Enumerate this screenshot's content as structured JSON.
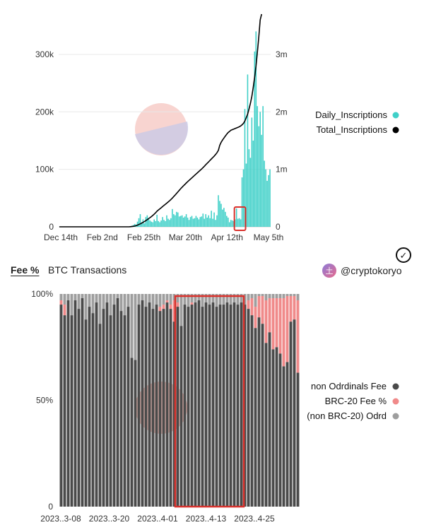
{
  "tabs": [
    {
      "label": "Fee %",
      "active": true
    },
    {
      "label": "BTC Transactions",
      "active": false
    }
  ],
  "author": "@cryptokoryo",
  "author_initial": "土",
  "check_icon": "✓",
  "chart_data": [
    {
      "type": "bar+line",
      "x_ticks": [
        "Dec 14th",
        "Feb 2nd",
        "Feb 25th",
        "Mar 20th",
        "Apr 12th",
        "May 5th"
      ],
      "y_left_ticks": [
        "0",
        "100k",
        "200k",
        "300k"
      ],
      "y_left_lim": [
        0,
        370000
      ],
      "y_right_ticks": [
        "0",
        "1m",
        "2m",
        "3m"
      ],
      "y_right_lim": [
        0,
        3700000
      ],
      "legend": [
        "Daily_Inscriptions",
        "Total_Inscriptions"
      ],
      "legend_position": "right",
      "colors": {
        "Daily_Inscriptions": "#40d0c8",
        "Total_Inscriptions": "#000000"
      },
      "series": [
        {
          "name": "Daily_Inscriptions",
          "values": [
            0,
            0,
            0,
            0,
            0,
            0,
            0,
            0,
            0,
            0,
            0,
            0,
            0,
            0,
            0,
            0,
            0,
            0,
            0,
            0,
            0,
            0,
            0,
            0,
            0,
            0,
            0,
            0,
            0,
            0,
            0,
            0,
            0,
            0,
            0,
            0,
            0,
            0,
            0,
            0,
            0,
            0,
            0,
            0,
            0,
            0,
            0,
            0,
            0,
            0,
            0,
            1000,
            2000,
            3000,
            5000,
            4000,
            9000,
            15000,
            22000,
            8000,
            13000,
            6000,
            17000,
            20000,
            14000,
            11000,
            9000,
            8000,
            13000,
            10000,
            21000,
            10000,
            8000,
            11000,
            17000,
            12000,
            10000,
            20000,
            14000,
            12000,
            15000,
            31000,
            22000,
            20000,
            26000,
            25000,
            18000,
            19000,
            20000,
            16000,
            18000,
            22000,
            16000,
            12000,
            17000,
            19000,
            14000,
            15000,
            19000,
            16000,
            13000,
            17000,
            18000,
            23000,
            14000,
            22000,
            16000,
            20000,
            15000,
            28000,
            14000,
            25000,
            12000,
            20000,
            55000,
            45000,
            40000,
            30000,
            33000,
            26000,
            19000,
            16000,
            8000,
            12000,
            11000,
            10000,
            13000,
            32000,
            14000,
            15000,
            13000,
            86000,
            100000,
            205000,
            110000,
            265000,
            135000,
            120000,
            190000,
            150000,
            305000,
            340000,
            210000,
            175000,
            200000,
            160000,
            210000,
            115000,
            100000,
            80000,
            90000,
            100000
          ]
        },
        {
          "name": "Total_Inscriptions",
          "values": [
            0,
            0,
            0,
            0,
            0,
            0,
            0,
            0,
            0,
            0,
            0,
            0,
            0,
            0,
            0,
            0,
            0,
            0,
            0,
            0,
            0,
            0,
            0,
            0,
            0,
            0,
            0,
            0,
            0,
            0,
            0,
            0,
            0,
            0,
            0,
            0,
            0,
            0,
            0,
            0,
            0,
            0,
            0,
            0,
            0,
            0,
            0,
            0,
            0,
            0,
            0,
            2000,
            5000,
            9000,
            14000,
            20000,
            30000,
            40000,
            52000,
            64000,
            78000,
            92000,
            108000,
            124000,
            142000,
            160000,
            178000,
            198000,
            220000,
            245000,
            270000,
            292000,
            312000,
            332000,
            352000,
            372000,
            392000,
            412000,
            432000,
            452000,
            476000,
            500000,
            526000,
            552000,
            580000,
            608000,
            636000,
            664000,
            690000,
            714000,
            738000,
            762000,
            786000,
            808000,
            830000,
            852000,
            874000,
            896000,
            918000,
            940000,
            962000,
            984000,
            1006000,
            1030000,
            1055000,
            1080000,
            1105000,
            1130000,
            1155000,
            1180000,
            1205000,
            1230000,
            1258000,
            1288000,
            1330000,
            1420000,
            1470000,
            1510000,
            1545000,
            1580000,
            1610000,
            1640000,
            1660000,
            1680000,
            1690000,
            1700000,
            1710000,
            1720000,
            1730000,
            1740000,
            1755000,
            1775000,
            1800000,
            1840000,
            1900000,
            1960000,
            2050000,
            2150000,
            2270000,
            2420000,
            2600000,
            2800000,
            3050000,
            3300000,
            3600000,
            3700000
          ]
        }
      ],
      "highlight": {
        "from_index": 127,
        "to_index": 132,
        "color": "#d9302b"
      }
    },
    {
      "type": "stacked-bar-100",
      "x_ticks": [
        "2023..3-08",
        "2023..3-20",
        "2023..4-01",
        "2023..4-13",
        "2023..4-25"
      ],
      "y_ticks": [
        "0",
        "50%",
        "100%"
      ],
      "ylim": [
        0,
        1
      ],
      "legend": [
        "non Odrdinals Fee",
        "BRC-20 Fee %",
        "(non BRC-20) Odrd"
      ],
      "legend_position": "right",
      "colors": {
        "non Odrdinals Fee": "#4a4a4a",
        "BRC-20 Fee %": "#f08a8a",
        "(non BRC-20) Odrd": "#9e9e9e"
      },
      "series": [
        {
          "name": "non Odrdinals Fee",
          "values": [
            0.95,
            0.9,
            0.97,
            0.9,
            0.97,
            0.93,
            0.98,
            0.88,
            0.94,
            0.91,
            0.96,
            0.86,
            0.93,
            0.96,
            0.9,
            0.95,
            0.98,
            0.92,
            0.9,
            0.94,
            0.7,
            0.69,
            0.95,
            0.97,
            0.94,
            0.96,
            0.93,
            0.95,
            0.92,
            0.93,
            0.96,
            0.93,
            0.87,
            0.94,
            0.85,
            0.95,
            0.94,
            0.95,
            0.96,
            0.97,
            0.94,
            0.96,
            0.95,
            0.96,
            0.94,
            0.95,
            0.95,
            0.96,
            0.95,
            0.96,
            0.95,
            0.96,
            0.95,
            0.93,
            0.9,
            0.84,
            0.89,
            0.86,
            0.77,
            0.82,
            0.74,
            0.75,
            0.72,
            0.66,
            0.68,
            0.87,
            0.88,
            0.63
          ]
        },
        {
          "name": "BRC-20 Fee %",
          "values": [
            0.02,
            0.05,
            0.0,
            0.0,
            0.0,
            0.0,
            0.0,
            0.0,
            0.0,
            0.0,
            0.0,
            0.0,
            0.0,
            0.0,
            0.0,
            0.0,
            0.0,
            0.0,
            0.0,
            0.0,
            0.0,
            0.0,
            0.0,
            0.0,
            0.0,
            0.0,
            0.0,
            0.0,
            0.02,
            0.02,
            0.01,
            0.02,
            0.1,
            0.02,
            0.0,
            0.0,
            0.0,
            0.01,
            0.0,
            0.0,
            0.0,
            0.0,
            0.0,
            0.0,
            0.0,
            0.0,
            0.0,
            0.0,
            0.0,
            0.0,
            0.0,
            0.0,
            0.0,
            0.04,
            0.08,
            0.1,
            0.1,
            0.13,
            0.2,
            0.16,
            0.24,
            0.23,
            0.26,
            0.32,
            0.31,
            0.12,
            0.11,
            0.34
          ]
        },
        {
          "name": "(non BRC-20) Odrd",
          "values": [
            0.03,
            0.05,
            0.03,
            0.1,
            0.03,
            0.07,
            0.02,
            0.12,
            0.06,
            0.09,
            0.04,
            0.14,
            0.07,
            0.04,
            0.1,
            0.05,
            0.02,
            0.08,
            0.1,
            0.06,
            0.3,
            0.31,
            0.05,
            0.03,
            0.06,
            0.04,
            0.07,
            0.05,
            0.06,
            0.05,
            0.03,
            0.05,
            0.03,
            0.04,
            0.15,
            0.05,
            0.06,
            0.04,
            0.04,
            0.03,
            0.06,
            0.04,
            0.05,
            0.04,
            0.06,
            0.05,
            0.05,
            0.04,
            0.05,
            0.04,
            0.05,
            0.04,
            0.05,
            0.03,
            0.02,
            0.06,
            0.01,
            0.01,
            0.03,
            0.02,
            0.02,
            0.02,
            0.02,
            0.02,
            0.01,
            0.01,
            0.01,
            0.03
          ]
        }
      ],
      "highlight": {
        "from_index": 33,
        "to_index": 51,
        "color": "#d9302b"
      }
    }
  ]
}
